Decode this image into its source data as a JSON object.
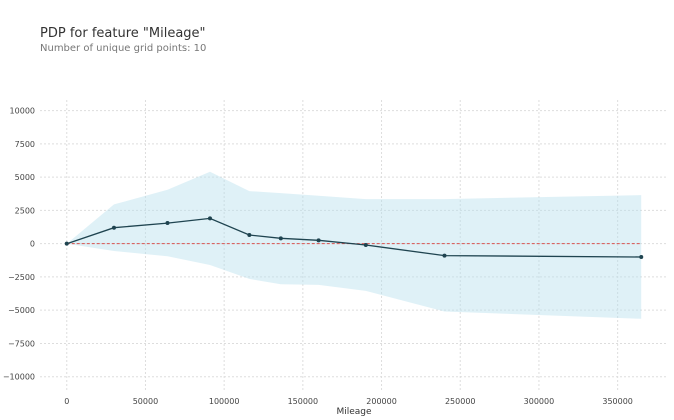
{
  "header": {
    "title": "PDP for feature \"Mileage\"",
    "subtitle": "Number of unique grid points: 10"
  },
  "colors": {
    "line": "#1f4450",
    "band": "#b8e0ee",
    "zero": "#d9534f",
    "grid": "#dddddd"
  },
  "chart_data": {
    "type": "line",
    "title": "PDP for feature \"Mileage\"",
    "subtitle": "Number of unique grid points: 10",
    "xlabel": "Mileage",
    "ylabel": "",
    "xlim": [
      -17000,
      382000
    ],
    "ylim": [
      -11000,
      10800
    ],
    "xticks": [
      0,
      50000,
      100000,
      150000,
      200000,
      250000,
      300000,
      350000
    ],
    "xtick_labels": [
      "0",
      "50000",
      "100000",
      "150000",
      "200000",
      "250000",
      "300000",
      "350000"
    ],
    "yticks": [
      10000,
      7500,
      5000,
      2500,
      0,
      -2500,
      -5000,
      -7500,
      -10000
    ],
    "ytick_labels": [
      "10000",
      "7500",
      "5000",
      "2500",
      "0",
      "−2500",
      "−5000",
      "−7500",
      "−10000"
    ],
    "grid": true,
    "series": [
      {
        "x": [
          0,
          30000,
          64000,
          91000,
          116000,
          136000,
          160000,
          190000,
          240000,
          365000
        ],
        "values": [
          0,
          1200,
          1550,
          1900,
          650,
          400,
          250,
          -100,
          -900,
          -1000
        ],
        "upper": [
          0,
          2950,
          4050,
          5400,
          3950,
          3800,
          3600,
          3350,
          3350,
          3650
        ],
        "lower": [
          0,
          -550,
          -950,
          -1600,
          -2650,
          -3050,
          -3100,
          -3550,
          -5100,
          -5650
        ]
      }
    ],
    "reference_line": {
      "y": 0,
      "style": "dashed"
    }
  }
}
